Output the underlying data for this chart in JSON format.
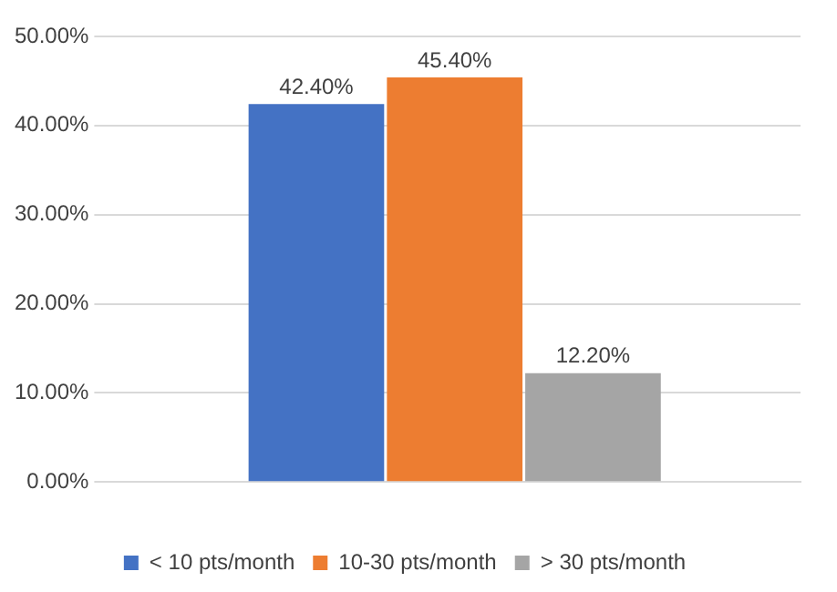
{
  "chart_data": {
    "type": "bar",
    "categories": [
      null
    ],
    "series": [
      {
        "name": "< 10 pts/month",
        "color": "#4472c4",
        "values": [
          42.4
        ],
        "value_labels": [
          "42.40%"
        ]
      },
      {
        "name": "10-30 pts/month",
        "color": "#ed7d31",
        "values": [
          45.4
        ],
        "value_labels": [
          "45.40%"
        ]
      },
      {
        "name": "> 30 pts/month",
        "color": "#a5a5a5",
        "values": [
          12.2
        ],
        "value_labels": [
          "12.20%"
        ]
      }
    ],
    "ylim": [
      0,
      50
    ],
    "yticks": [
      {
        "value": 0,
        "label": "0.00%"
      },
      {
        "value": 10,
        "label": "10.00%"
      },
      {
        "value": 20,
        "label": "20.00%"
      },
      {
        "value": 30,
        "label": "30.00%"
      },
      {
        "value": 40,
        "label": "40.00%"
      },
      {
        "value": 50,
        "label": "50.00%"
      }
    ],
    "grid": "y",
    "legend": "bottom"
  }
}
